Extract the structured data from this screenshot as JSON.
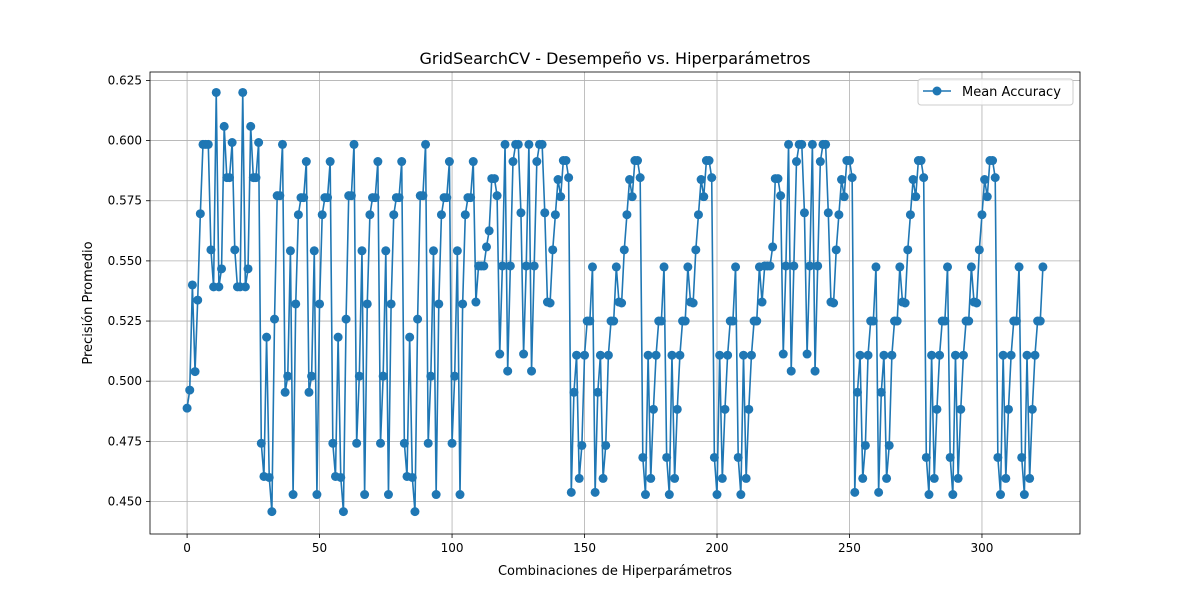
{
  "chart_data": {
    "type": "line",
    "title": "GridSearchCV - Desempeño vs. Hiperparámetros",
    "xlabel": "Combinaciones de Hiperparámetros",
    "ylabel": "Precisión Promedio",
    "xlim": [
      -14,
      337
    ],
    "ylim": [
      0.4365,
      0.6285
    ],
    "xticks": [
      0,
      50,
      100,
      150,
      200,
      250,
      300
    ],
    "yticks": [
      0.45,
      0.475,
      0.5,
      0.525,
      0.55,
      0.575,
      0.6,
      0.625
    ],
    "ytick_labels": [
      "0.450",
      "0.475",
      "0.500",
      "0.525",
      "0.550",
      "0.575",
      "0.600",
      "0.625"
    ],
    "grid": true,
    "legend_position": "top-right",
    "series_color": "#1f77b4",
    "series": [
      {
        "name": "Mean Accuracy",
        "marker": "circle",
        "x_start": 0,
        "values": [
          0.4888,
          0.4963,
          0.54,
          0.504,
          0.5337,
          0.5696,
          0.5984,
          0.5984,
          0.5984,
          0.5546,
          0.5392,
          0.62,
          0.5392,
          0.5467,
          0.6059,
          0.5846,
          0.5846,
          0.5992,
          0.5546,
          0.5392,
          0.5392,
          0.62,
          0.5392,
          0.5467,
          0.6059,
          0.5846,
          0.5846,
          0.5992,
          0.4742,
          0.4604,
          0.5183,
          0.46,
          0.4458,
          0.5258,
          0.5771,
          0.5771,
          0.5984,
          0.4954,
          0.5021,
          0.5542,
          0.4529,
          0.5321,
          0.5692,
          0.5763,
          0.5763,
          0.5913,
          0.4954,
          0.5021,
          0.5542,
          0.4529,
          0.5321,
          0.5692,
          0.5763,
          0.5763,
          0.5913,
          0.4742,
          0.4604,
          0.5183,
          0.46,
          0.4458,
          0.5258,
          0.5771,
          0.5771,
          0.5984,
          0.4742,
          0.5021,
          0.5542,
          0.4529,
          0.5321,
          0.5692,
          0.5763,
          0.5763,
          0.5913,
          0.4742,
          0.5021,
          0.5542,
          0.4529,
          0.5321,
          0.5692,
          0.5763,
          0.5763,
          0.5913,
          0.4742,
          0.4604,
          0.5183,
          0.46,
          0.4458,
          0.5258,
          0.5771,
          0.5771,
          0.5984,
          0.4742,
          0.5021,
          0.5542,
          0.4529,
          0.5321,
          0.5692,
          0.5763,
          0.5763,
          0.5913,
          0.4742,
          0.5021,
          0.5542,
          0.4529,
          0.5321,
          0.5692,
          0.5763,
          0.5763,
          0.5913,
          0.5329,
          0.5479,
          0.5479,
          0.5479,
          0.5558,
          0.5625,
          0.5842,
          0.5842,
          0.5771,
          0.5113,
          0.5479,
          0.5984,
          0.5042,
          0.5479,
          0.5913,
          0.5984,
          0.5984,
          0.57,
          0.5113,
          0.5479,
          0.5984,
          0.5042,
          0.5479,
          0.5913,
          0.5984,
          0.5984,
          0.57,
          0.5329,
          0.5325,
          0.5546,
          0.5692,
          0.5838,
          0.5767,
          0.5917,
          0.5917,
          0.5846,
          0.4538,
          0.4954,
          0.5108,
          0.4596,
          0.4733,
          0.5108,
          0.525,
          0.525,
          0.5475,
          0.4538,
          0.4954,
          0.5108,
          0.4596,
          0.4733,
          0.5108,
          0.525,
          0.525,
          0.5475,
          0.5329,
          0.5325,
          0.5546,
          0.5692,
          0.5838,
          0.5767,
          0.5917,
          0.5917,
          0.5846,
          0.4683,
          0.4529,
          0.5108,
          0.4596,
          0.4883,
          0.5108,
          0.525,
          0.525,
          0.5475,
          0.4683,
          0.4529,
          0.5108,
          0.4596,
          0.4883,
          0.5108,
          0.525,
          0.525,
          0.5475,
          0.5329,
          0.5325,
          0.5546,
          0.5692,
          0.5838,
          0.5767,
          0.5917,
          0.5917,
          0.5846,
          0.4683,
          0.4529,
          0.5108,
          0.4596,
          0.4883,
          0.5108,
          0.525,
          0.525,
          0.5475,
          0.4683,
          0.4529,
          0.5108,
          0.4596,
          0.4883,
          0.5108,
          0.525,
          0.525,
          0.5475,
          0.5329,
          0.5479,
          0.5479,
          0.5479,
          0.5558,
          0.5842,
          0.5842,
          0.5771,
          0.5113,
          0.5479,
          0.5984,
          0.5042,
          0.5479,
          0.5913,
          0.5984,
          0.5984,
          0.57,
          0.5113,
          0.5479,
          0.5984,
          0.5042,
          0.5479,
          0.5913,
          0.5984,
          0.5984,
          0.57,
          0.5329,
          0.5325,
          0.5546,
          0.5692,
          0.5838,
          0.5767,
          0.5917,
          0.5917,
          0.5846,
          0.4538,
          0.4954,
          0.5108,
          0.4596,
          0.4733,
          0.5108,
          0.525,
          0.525,
          0.5475,
          0.4538,
          0.4954,
          0.5108,
          0.4596,
          0.4733,
          0.5108,
          0.525,
          0.525,
          0.5475,
          0.5329,
          0.5325,
          0.5546,
          0.5692,
          0.5838,
          0.5767,
          0.5917,
          0.5917,
          0.5846,
          0.4683,
          0.4529,
          0.5108,
          0.4596,
          0.4883,
          0.5108,
          0.525,
          0.525,
          0.5475,
          0.4683,
          0.4529,
          0.5108,
          0.4596,
          0.4883,
          0.5108,
          0.525,
          0.525,
          0.5475,
          0.5329,
          0.5325,
          0.5546,
          0.5692,
          0.5838,
          0.5767,
          0.5917,
          0.5917,
          0.5846,
          0.4683,
          0.4529,
          0.5108,
          0.4596,
          0.4883,
          0.5108,
          0.525,
          0.525,
          0.5475,
          0.4683,
          0.4529,
          0.5108,
          0.4596,
          0.4883,
          0.5108,
          0.525,
          0.525,
          0.5475
        ]
      }
    ]
  }
}
